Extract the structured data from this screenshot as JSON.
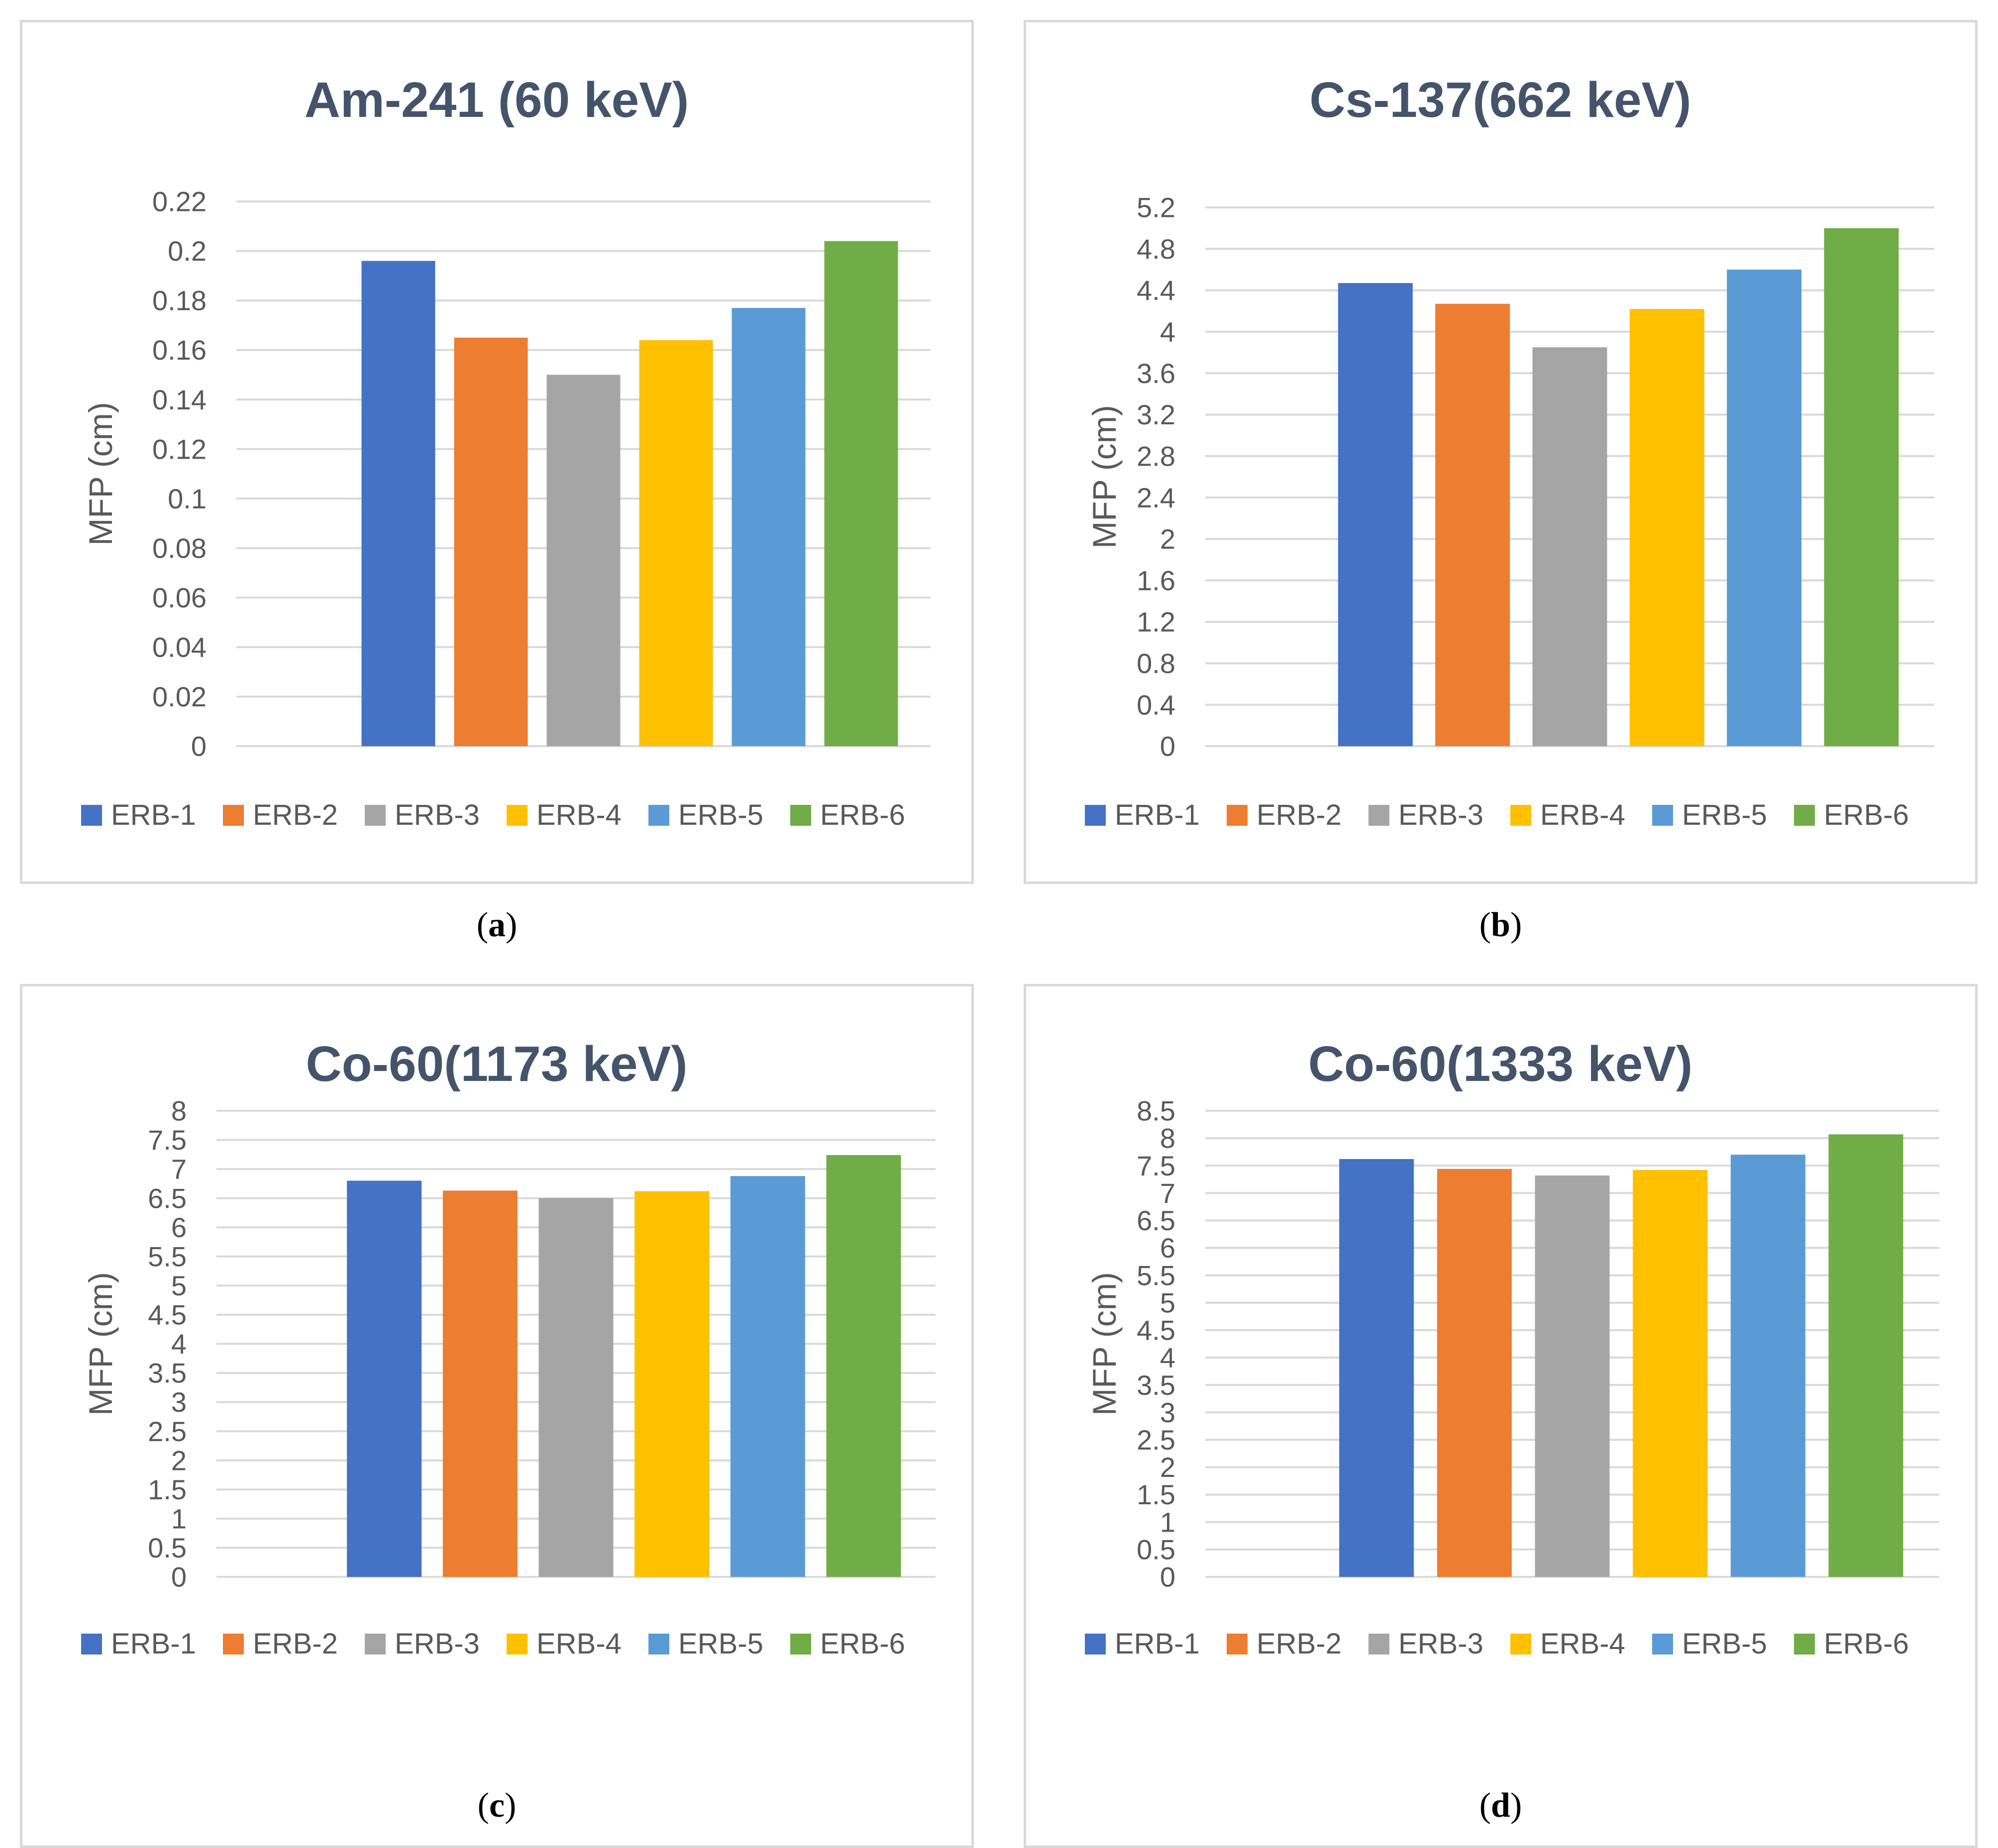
{
  "legend_labels": [
    "ERB-1",
    "ERB-2",
    "ERB-3",
    "ERB-4",
    "ERB-5",
    "ERB-6"
  ],
  "series_colors": [
    "#4472c4",
    "#ed7d31",
    "#a5a5a5",
    "#ffc000",
    "#5b9bd5",
    "#70ad47"
  ],
  "chart_data": [
    {
      "type": "bar",
      "title": "Am-241 (60 keV)",
      "ylabel": "MFP (cm)",
      "xlabel": "",
      "categories": [
        "ERB-1",
        "ERB-2",
        "ERB-3",
        "ERB-4",
        "ERB-5",
        "ERB-6"
      ],
      "values": [
        0.196,
        0.165,
        0.15,
        0.164,
        0.177,
        0.204
      ],
      "ylim": [
        0,
        0.22
      ],
      "yticks": [
        "0",
        "0.02",
        "0.04",
        "0.06",
        "0.08",
        "0.1",
        "0.12",
        "0.14",
        "0.16",
        "0.18",
        "0.2",
        "0.22"
      ],
      "legend": "bottom",
      "grid": true,
      "caption_letter": "a"
    },
    {
      "type": "bar",
      "title": "Cs-137(662 keV)",
      "ylabel": "MFP (cm)",
      "xlabel": "",
      "categories": [
        "ERB-1",
        "ERB-2",
        "ERB-3",
        "ERB-4",
        "ERB-5",
        "ERB-6"
      ],
      "values": [
        4.47,
        4.27,
        3.85,
        4.22,
        4.6,
        5.0
      ],
      "ylim": [
        0,
        5.2
      ],
      "yticks": [
        "0",
        "0.4",
        "0.8",
        "1.2",
        "1.6",
        "2",
        "2.4",
        "2.8",
        "3.2",
        "3.6",
        "4",
        "4.4",
        "4.8",
        "5.2"
      ],
      "legend": "bottom",
      "grid": true,
      "caption_letter": "b"
    },
    {
      "type": "bar",
      "title": "Co-60(1173 keV)",
      "ylabel": "MFP (cm)",
      "xlabel": "",
      "categories": [
        "ERB-1",
        "ERB-2",
        "ERB-3",
        "ERB-4",
        "ERB-5",
        "ERB-6"
      ],
      "values": [
        6.8,
        6.63,
        6.5,
        6.62,
        6.88,
        7.24
      ],
      "ylim": [
        0,
        8
      ],
      "yticks": [
        "0",
        "0.5",
        "1",
        "1.5",
        "2",
        "2.5",
        "3",
        "3.5",
        "4",
        "4.5",
        "5",
        "5.5",
        "6",
        "6.5",
        "7",
        "7.5",
        "8"
      ],
      "legend": "bottom",
      "grid": true,
      "caption_letter": "c"
    },
    {
      "type": "bar",
      "title": "Co-60(1333 keV)",
      "ylabel": "MFP (cm)",
      "xlabel": "",
      "categories": [
        "ERB-1",
        "ERB-2",
        "ERB-3",
        "ERB-4",
        "ERB-5",
        "ERB-6"
      ],
      "values": [
        7.62,
        7.44,
        7.32,
        7.42,
        7.7,
        8.07
      ],
      "ylim": [
        0,
        8.5
      ],
      "yticks": [
        "0",
        "0.5",
        "1",
        "1.5",
        "2",
        "2.5",
        "3",
        "3.5",
        "4",
        "4.5",
        "5",
        "5.5",
        "6",
        "6.5",
        "7",
        "7.5",
        "8",
        "8.5"
      ],
      "legend": "bottom",
      "grid": true,
      "caption_letter": "d"
    }
  ]
}
